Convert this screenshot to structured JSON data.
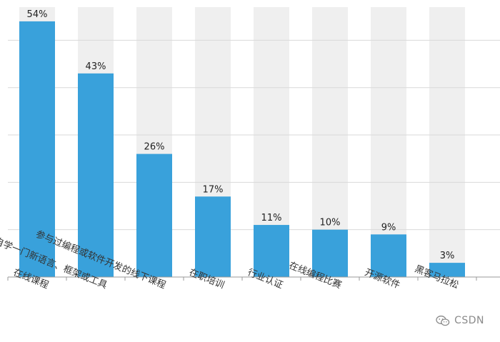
{
  "chart_data": {
    "type": "bar",
    "title": "",
    "xlabel": "",
    "ylabel": "",
    "categories": [
      "在线课程",
      "自学一门新语言、框架或工具",
      "参与过编程或软件开发的线下课程",
      "在职培训",
      "行业认证",
      "在线编程比赛",
      "开源软件",
      "黑客马拉松"
    ],
    "values": [
      54,
      43,
      26,
      17,
      11,
      10,
      9,
      3
    ],
    "value_labels": [
      "54%",
      "43%",
      "26%",
      "17%",
      "11%",
      "10%",
      "9%",
      "3%"
    ],
    "ylim": [
      0,
      57
    ],
    "y_gridlines": [
      10,
      20,
      30,
      40,
      50
    ],
    "grid": true,
    "show_background_bands": true,
    "legend": "none",
    "colors": {
      "bar": "#39a1db",
      "band": "#efefef",
      "grid": "#d9d9d9",
      "axis": "#999999",
      "text": "#222222",
      "category_text": "#333333"
    }
  },
  "watermark": {
    "text": "CSDN",
    "icon": "wechat-icon"
  }
}
